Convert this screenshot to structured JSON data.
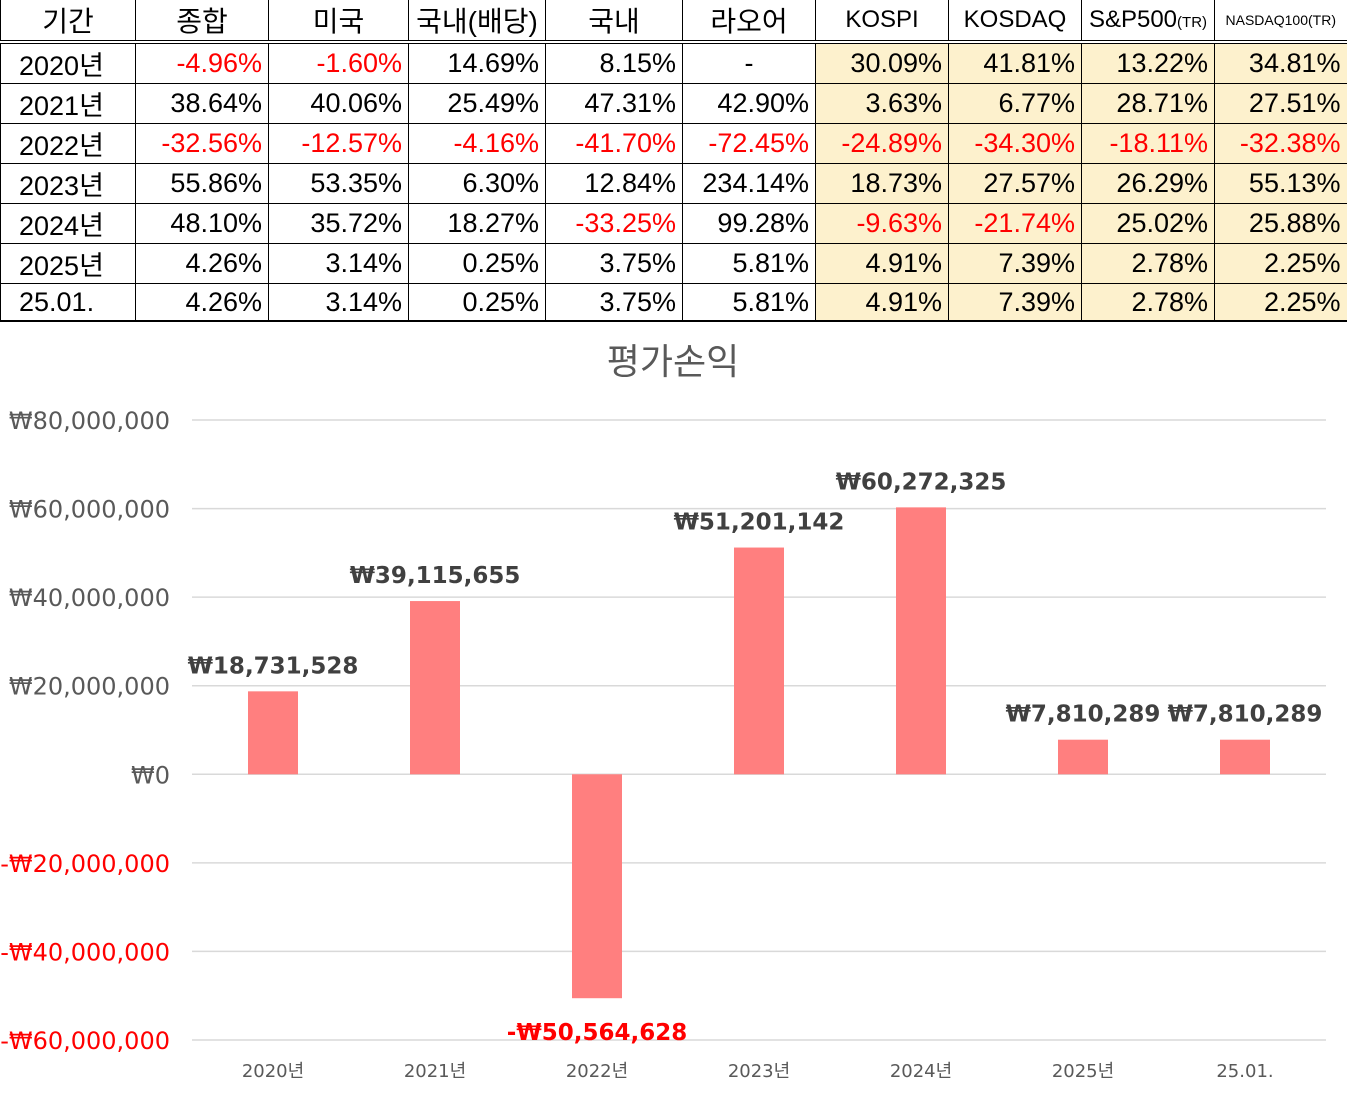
{
  "table": {
    "headers": [
      "기간",
      "종합",
      "미국",
      "국내(배당)",
      "국내",
      "라오어",
      "KOSPI",
      "KOSDAQ",
      "S&P500",
      "NASDAQ100(TR)"
    ],
    "header_suffix_sp500": "(TR)",
    "rows": [
      {
        "label": "2020년",
        "cells": [
          "-4.96%",
          "-1.60%",
          "14.69%",
          "8.15%",
          "-",
          "30.09%",
          "41.81%",
          "13.22%",
          "34.81%"
        ]
      },
      {
        "label": "2021년",
        "cells": [
          "38.64%",
          "40.06%",
          "25.49%",
          "47.31%",
          "42.90%",
          "3.63%",
          "6.77%",
          "28.71%",
          "27.51%"
        ]
      },
      {
        "label": "2022년",
        "cells": [
          "-32.56%",
          "-12.57%",
          "-4.16%",
          "-41.70%",
          "-72.45%",
          "-24.89%",
          "-34.30%",
          "-18.11%",
          "-32.38%"
        ]
      },
      {
        "label": "2023년",
        "cells": [
          "55.86%",
          "53.35%",
          "6.30%",
          "12.84%",
          "234.14%",
          "18.73%",
          "27.57%",
          "26.29%",
          "55.13%"
        ]
      },
      {
        "label": "2024년",
        "cells": [
          "48.10%",
          "35.72%",
          "18.27%",
          "-33.25%",
          "99.28%",
          "-9.63%",
          "-21.74%",
          "25.02%",
          "25.88%"
        ]
      },
      {
        "label": "2025년",
        "cells": [
          "4.26%",
          "3.14%",
          "0.25%",
          "3.75%",
          "5.81%",
          "4.91%",
          "7.39%",
          "2.78%",
          "2.25%"
        ]
      },
      {
        "label": "25.01.",
        "cells": [
          "4.26%",
          "3.14%",
          "0.25%",
          "3.75%",
          "5.81%",
          "4.91%",
          "7.39%",
          "2.78%",
          "2.25%"
        ]
      }
    ],
    "colors": {
      "negative": "#ff0000",
      "benchmark_fill": "#fdf1cd"
    }
  },
  "chart_data": {
    "type": "bar",
    "title": "평가손익",
    "categories": [
      "2020년",
      "2021년",
      "2022년",
      "2023년",
      "2024년",
      "2025년",
      "25.01."
    ],
    "values": [
      18731528,
      39115655,
      -50564628,
      51201142,
      60272325,
      7810289,
      7810289
    ],
    "value_labels": [
      "₩18,731,528",
      "₩39,115,655",
      "-₩50,564,628",
      "₩51,201,142",
      "₩60,272,325",
      "₩7,810,289",
      "₩7,810,289"
    ],
    "yticks": [
      80000000,
      60000000,
      40000000,
      20000000,
      0,
      -20000000,
      -40000000,
      -60000000
    ],
    "ytick_labels": [
      "₩80,000,000",
      "₩60,000,000",
      "₩40,000,000",
      "₩20,000,000",
      "₩0",
      "-₩20,000,000",
      "-₩40,000,000",
      "-₩60,000,000"
    ],
    "ylim": [
      -60000000,
      80000000
    ],
    "grid": true,
    "colors": {
      "bar": "#ff7f7f",
      "negative_label": "#ff0000",
      "positive_label": "#404040",
      "tick_label": "#595959",
      "grid": "#d9d9d9"
    }
  }
}
